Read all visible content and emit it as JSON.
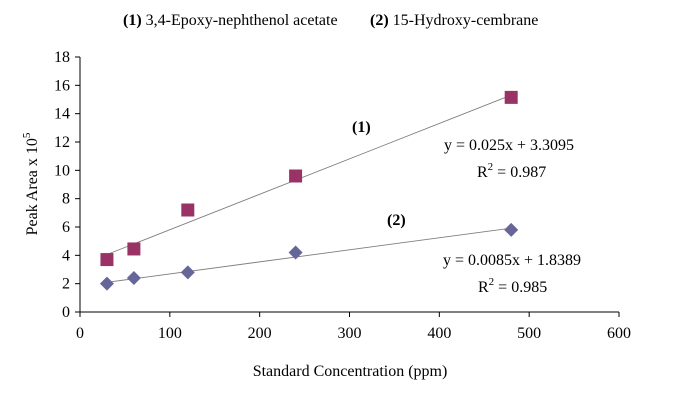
{
  "chart_data": {
    "type": "scatter",
    "legend": [
      {
        "num": "1",
        "label": "3,4-Epoxy-nephthenol acetate"
      },
      {
        "num": "2",
        "label": "15-Hydroxy-cembrane"
      }
    ],
    "xlabel": "Standard Concentration (ppm)",
    "ylabel": {
      "base": "Peak Area x 10",
      "exponent": "5"
    },
    "xlim": [
      0,
      600
    ],
    "ylim": [
      0,
      18
    ],
    "xticks": [
      0,
      100,
      200,
      300,
      400,
      500,
      600
    ],
    "yticks": [
      0,
      2,
      4,
      6,
      8,
      10,
      12,
      14,
      16,
      18
    ],
    "grid": false,
    "series": [
      {
        "name": "1",
        "marker": "square",
        "color": "#993366",
        "x": [
          30,
          60,
          120,
          240,
          480
        ],
        "y": [
          3.7,
          4.45,
          7.2,
          9.6,
          15.15
        ],
        "trendline": {
          "slope": 0.025,
          "intercept": 3.3095
        },
        "series_label": "(1)",
        "equation": "y = 0.025x + 3.3095",
        "r2": {
          "base": "R",
          "exponent": "2",
          "value": " = 0.987"
        }
      },
      {
        "name": "2",
        "marker": "diamond",
        "color": "#666699",
        "x": [
          30,
          60,
          120,
          240,
          480
        ],
        "y": [
          2.0,
          2.4,
          2.8,
          4.2,
          5.8
        ],
        "trendline": {
          "slope": 0.0085,
          "intercept": 1.8389
        },
        "series_label": "(2)",
        "equation": "y = 0.0085x + 1.8389",
        "r2": {
          "base": "R",
          "exponent": "2",
          "value": " = 0.985"
        }
      }
    ]
  }
}
